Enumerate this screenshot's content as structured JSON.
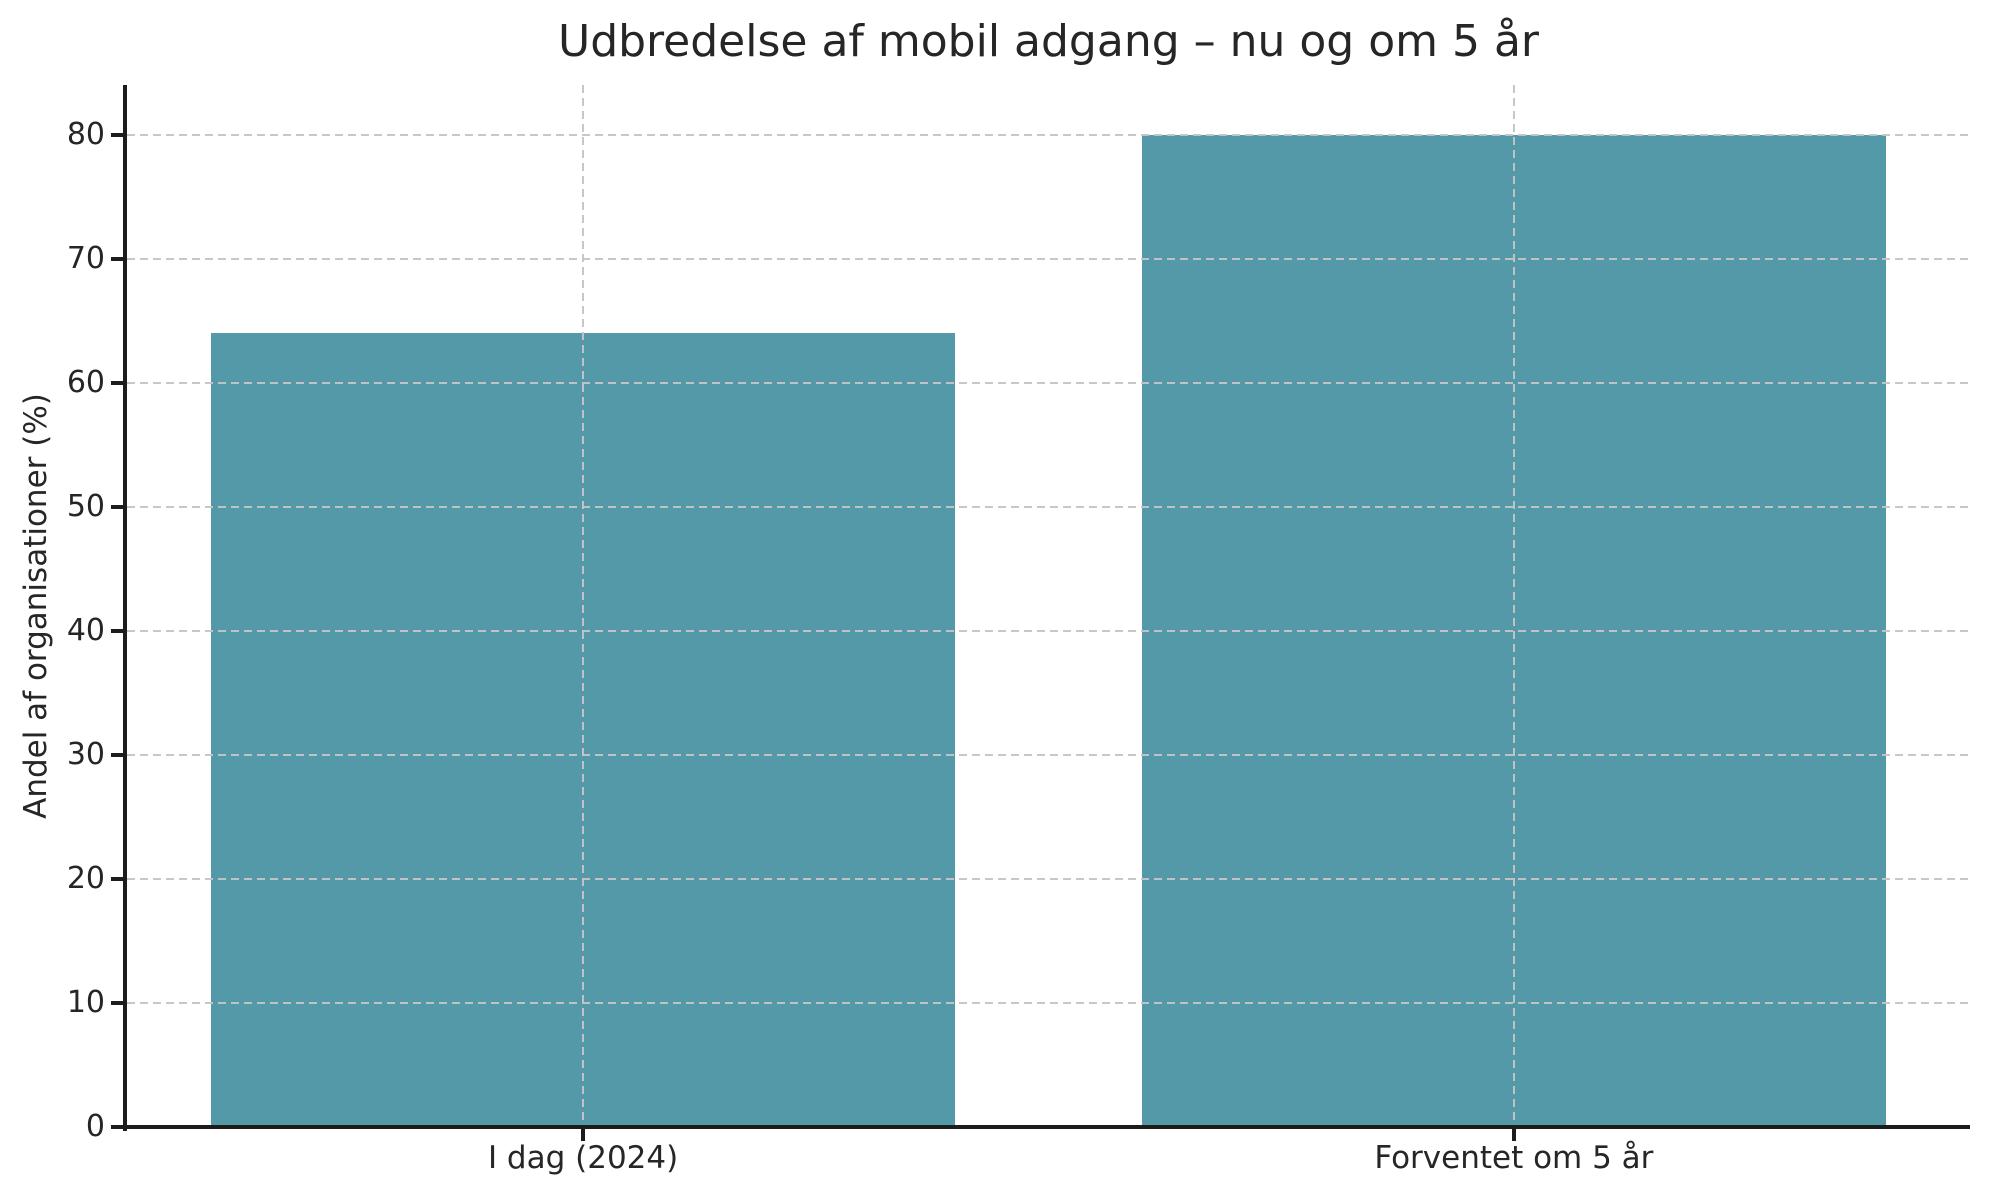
{
  "chart_data": {
    "type": "bar",
    "title": "Udbredelse af mobil adgang – nu og om 5 år",
    "xlabel": "",
    "ylabel": "Andel af organisationer (%)",
    "categories": [
      "I dag (2024)",
      "Forventet om 5 år"
    ],
    "values": [
      64,
      80
    ],
    "yticks": [
      0,
      10,
      20,
      30,
      40,
      50,
      60,
      70,
      80
    ],
    "ylim": [
      0,
      84
    ],
    "xlim": [
      -0.49,
      1.49
    ],
    "bar_width": 0.8,
    "grid": "dashed gray gridlines, horizontal at each ytick and vertical at each category center, drawn above bars",
    "legend": "none",
    "colors": {
      "bar": "#5499a8",
      "grid": "#c5c5c5",
      "axis": "#1c1c1c",
      "text": "#262626",
      "background": "#ffffff"
    }
  }
}
